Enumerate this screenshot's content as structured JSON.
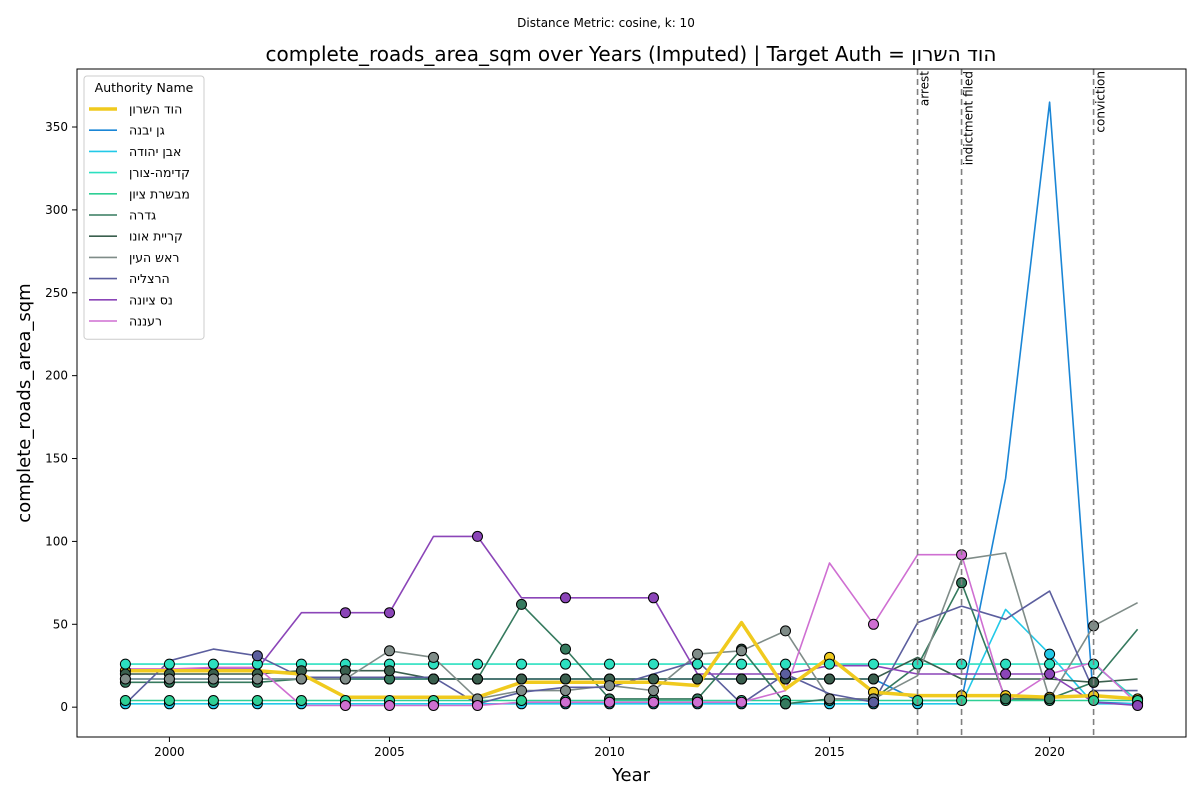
{
  "suptitle": "Distance Metric: cosine, k: 10",
  "chart_data": {
    "type": "line",
    "title": "complete_roads_area_sqm over Years (Imputed) | Target Auth = הוד השרון",
    "xlabel": "Year",
    "ylabel": "complete_roads_area_sqm",
    "xlim": [
      1997.9,
      2023.1
    ],
    "ylim": [
      -18,
      385
    ],
    "xticks": [
      2000,
      2005,
      2010,
      2015,
      2020
    ],
    "yticks": [
      0,
      50,
      100,
      150,
      200,
      250,
      300,
      350
    ],
    "grid": false,
    "legend_title": "Authority Name",
    "legend_position": "top-left",
    "x": [
      1999,
      2000,
      2001,
      2002,
      2003,
      2004,
      2005,
      2006,
      2007,
      2008,
      2009,
      2010,
      2011,
      2012,
      2013,
      2014,
      2015,
      2016,
      2017,
      2018,
      2019,
      2020,
      2021,
      2022
    ],
    "series": [
      {
        "name": "הוד השרון",
        "color": "#f0ca1e",
        "target": true,
        "values": [
          22,
          22,
          22,
          22,
          20,
          6,
          6,
          6,
          6,
          15,
          15,
          15,
          15,
          13,
          51,
          11,
          30,
          9,
          7,
          7,
          7,
          6,
          7,
          5
        ],
        "markers": [
          1999,
          2015,
          2016,
          2018,
          2019,
          2020,
          2021,
          2022
        ]
      },
      {
        "name": "גן יבנה",
        "color": "#1a86d6",
        "values": [
          17,
          17,
          17,
          17,
          17,
          17,
          17,
          17,
          17,
          17,
          17,
          17,
          17,
          17,
          17,
          17,
          17,
          17,
          4,
          4,
          138,
          365,
          3,
          2
        ],
        "markers": [
          1999,
          2000,
          2001,
          2002,
          2003,
          2004,
          2005,
          2006,
          2007,
          2008,
          2009,
          2010,
          2011,
          2012,
          2013,
          2014,
          2015,
          2016
        ]
      },
      {
        "name": "אבן יהודה",
        "color": "#22c9e8",
        "values": [
          2,
          2,
          2,
          2,
          2,
          2,
          2,
          2,
          2,
          2,
          2,
          2,
          2,
          2,
          2,
          2,
          2,
          2,
          2,
          2,
          59,
          32,
          2,
          2
        ],
        "markers": [
          1999,
          2000,
          2001,
          2002,
          2003,
          2004,
          2005,
          2006,
          2007,
          2008,
          2009,
          2010,
          2011,
          2012,
          2013,
          2014,
          2015,
          2016,
          2017,
          2020,
          2022
        ]
      },
      {
        "name": "קדימה-צורן",
        "color": "#2ce0c0",
        "values": [
          26,
          26,
          26,
          26,
          26,
          26,
          26,
          26,
          26,
          26,
          26,
          26,
          26,
          26,
          26,
          26,
          26,
          26,
          26,
          26,
          26,
          26,
          26,
          4
        ],
        "markers": [
          1999,
          2000,
          2001,
          2002,
          2003,
          2004,
          2005,
          2006,
          2007,
          2008,
          2009,
          2010,
          2011,
          2012,
          2013,
          2014,
          2015,
          2016,
          2017,
          2018,
          2019,
          2020,
          2021
        ]
      },
      {
        "name": "מבשרת ציון",
        "color": "#2ecf95",
        "values": [
          4,
          4,
          4,
          4,
          4,
          4,
          4,
          4,
          4,
          4,
          4,
          4,
          4,
          4,
          4,
          4,
          4,
          4,
          4,
          4,
          4,
          4,
          4,
          4
        ],
        "markers": [
          1999,
          2000,
          2001,
          2002,
          2003,
          2004,
          2005,
          2006,
          2007,
          2008,
          2009,
          2010,
          2011,
          2012,
          2013,
          2014,
          2015,
          2016,
          2017,
          2018,
          2019,
          2020,
          2021,
          2022
        ]
      },
      {
        "name": "גדרה",
        "color": "#357a5e",
        "values": [
          15,
          15,
          15,
          15,
          17,
          17,
          17,
          17,
          17,
          62,
          35,
          5,
          5,
          5,
          35,
          2,
          5,
          5,
          25,
          75,
          5,
          5,
          15,
          47
        ],
        "markers": [
          1999,
          2000,
          2001,
          2002,
          2003,
          2004,
          2005,
          2006,
          2007,
          2008,
          2009,
          2010,
          2011,
          2012,
          2013,
          2014,
          2015,
          2016,
          2018,
          2019,
          2020,
          2021
        ]
      },
      {
        "name": "קריית אונו",
        "color": "#3a5f4e",
        "values": [
          20,
          20,
          20,
          20,
          22,
          22,
          22,
          17,
          17,
          17,
          17,
          17,
          17,
          17,
          17,
          17,
          17,
          17,
          30,
          17,
          17,
          17,
          15,
          17
        ],
        "markers": [
          1999,
          2000,
          2001,
          2002,
          2003,
          2004,
          2005,
          2006,
          2007,
          2008,
          2009,
          2010,
          2011,
          2012,
          2013,
          2014,
          2015,
          2016,
          2021
        ]
      },
      {
        "name": "ראש העין",
        "color": "#7f8c88",
        "values": [
          17,
          17,
          17,
          17,
          17,
          17,
          34,
          30,
          5,
          10,
          10,
          13,
          10,
          32,
          34,
          46,
          5,
          5,
          19,
          89,
          93,
          5,
          49,
          63
        ],
        "markers": [
          1999,
          2000,
          2001,
          2002,
          2003,
          2004,
          2005,
          2006,
          2007,
          2008,
          2009,
          2010,
          2011,
          2012,
          2013,
          2014,
          2015,
          2016,
          2021
        ]
      },
      {
        "name": "הרצליה",
        "color": "#5b5e9e",
        "values": [
          2,
          28,
          35,
          31,
          18,
          18,
          18,
          18,
          2,
          9,
          12,
          12,
          20,
          28,
          2,
          20,
          8,
          3,
          51,
          61,
          53,
          70,
          10,
          10
        ],
        "markers": [
          2002,
          2014,
          2016
        ]
      },
      {
        "name": "נס ציונה",
        "color": "#8b45b8",
        "values": [
          23,
          23,
          23,
          23,
          57,
          57,
          57,
          103,
          103,
          66,
          66,
          66,
          66,
          20,
          20,
          20,
          25,
          25,
          20,
          20,
          20,
          20,
          3,
          1
        ],
        "markers": [
          2004,
          2005,
          2007,
          2009,
          2011,
          2019,
          2020,
          2022
        ]
      },
      {
        "name": "רעננה",
        "color": "#cf6fd2",
        "values": [
          23,
          23,
          24,
          24,
          1,
          1,
          1,
          1,
          1,
          3,
          3,
          3,
          3,
          3,
          3,
          10,
          87,
          50,
          92,
          92,
          3,
          20,
          27,
          2
        ],
        "markers": [
          2004,
          2005,
          2006,
          2007,
          2009,
          2010,
          2011,
          2012,
          2013,
          2016,
          2018
        ]
      }
    ],
    "annotations": [
      {
        "x": 2017,
        "label": "arrest"
      },
      {
        "x": 2018,
        "label": "indictment filed"
      },
      {
        "x": 2021,
        "label": "conviction"
      }
    ]
  }
}
